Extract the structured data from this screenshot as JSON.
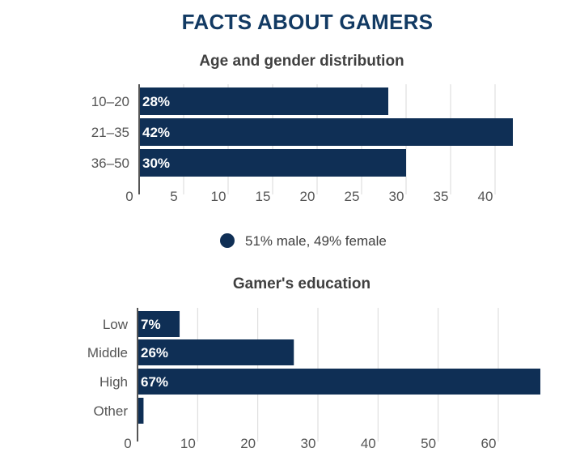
{
  "page": {
    "title": "FACTS ABOUT GAMERS"
  },
  "colors": {
    "bar": "#0f2f55",
    "title": "#123a63",
    "subtitle": "#404040",
    "grid": "#d9d9d9",
    "axis": "#555555",
    "label": "#555555",
    "bar_label": "#ffffff"
  },
  "legend": {
    "marker": "circle",
    "text": "51% male, 49% female"
  },
  "chart_data": [
    {
      "type": "bar",
      "orientation": "horizontal",
      "title": "Age and gender distribution",
      "categories": [
        "10–20",
        "21–35",
        "36–50"
      ],
      "values": [
        28,
        42,
        30
      ],
      "data_labels": [
        "28%",
        "42%",
        "30%"
      ],
      "xlim": [
        0,
        44
      ],
      "xticks": [
        0,
        5,
        10,
        15,
        20,
        25,
        30,
        35,
        40
      ],
      "grid": true,
      "legend_placement": "bottom-center"
    },
    {
      "type": "bar",
      "orientation": "horizontal",
      "title": "Gamer's education",
      "categories": [
        "Low",
        "Middle",
        "High",
        "Other"
      ],
      "values": [
        7,
        26,
        67,
        1
      ],
      "data_labels": [
        "7%",
        "26%",
        "67%",
        ""
      ],
      "xlim": [
        0,
        67
      ],
      "xticks": [
        0,
        10,
        20,
        30,
        40,
        50,
        60
      ],
      "grid": true
    }
  ]
}
